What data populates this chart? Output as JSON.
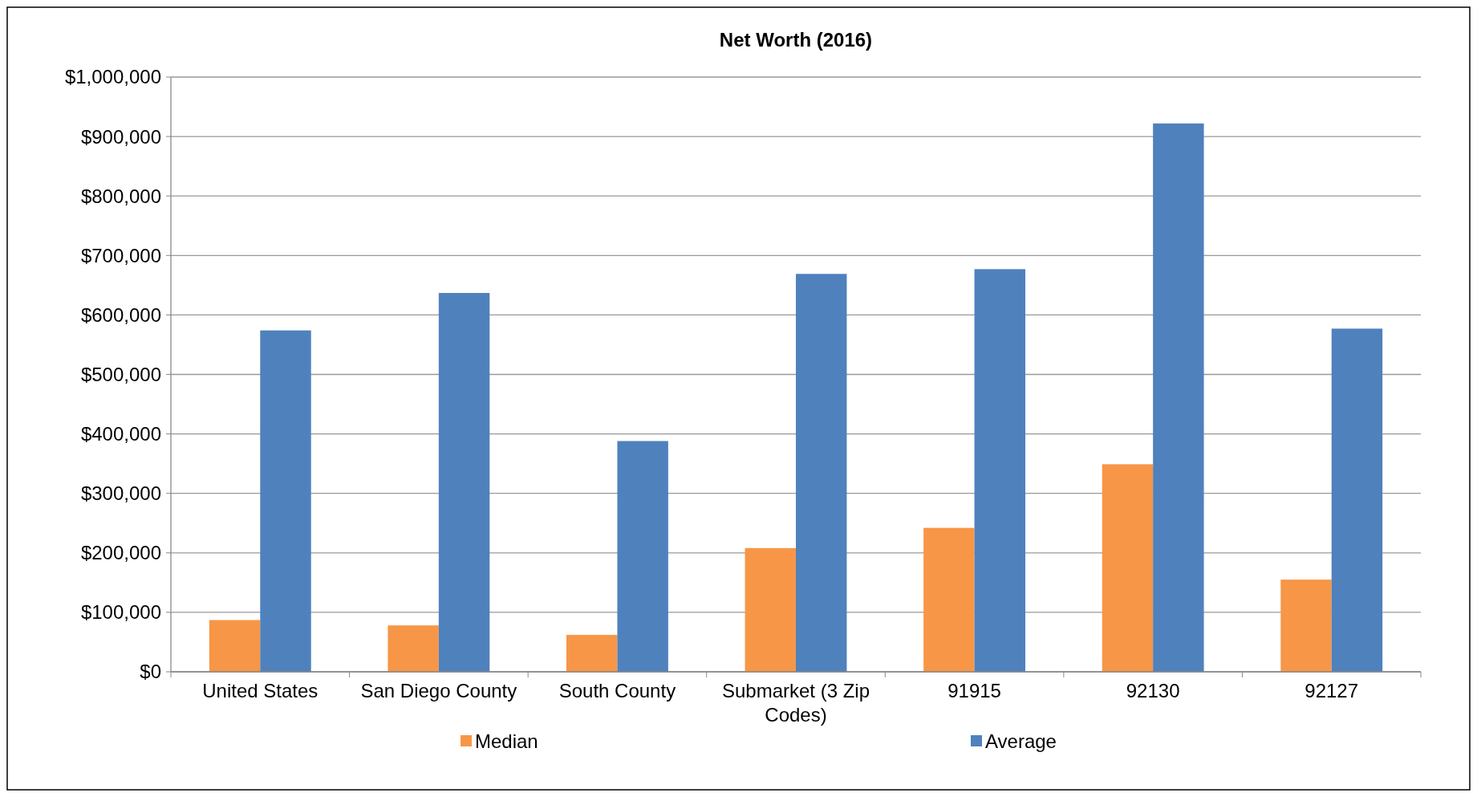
{
  "chart_data": {
    "type": "bar",
    "title": "Net Worth (2016)",
    "categories": [
      "United States",
      "San Diego County",
      "South County",
      "Submarket (3 Zip Codes)",
      "91915",
      "92130",
      "92127"
    ],
    "series": [
      {
        "name": "Median",
        "color": "#f79646",
        "values": [
          87000,
          78000,
          62000,
          208000,
          242000,
          349000,
          155000
        ]
      },
      {
        "name": "Average",
        "color": "#4f81bd",
        "values": [
          574000,
          637000,
          388000,
          669000,
          677000,
          922000,
          577000
        ]
      }
    ],
    "ylim": [
      0,
      1000000
    ],
    "yticks": [
      {
        "value": 0,
        "label": "$0"
      },
      {
        "value": 100000,
        "label": "$100,000"
      },
      {
        "value": 200000,
        "label": "$200,000"
      },
      {
        "value": 300000,
        "label": "$300,000"
      },
      {
        "value": 400000,
        "label": "$400,000"
      },
      {
        "value": 500000,
        "label": "$500,000"
      },
      {
        "value": 600000,
        "label": "$600,000"
      },
      {
        "value": 700000,
        "label": "$700,000"
      },
      {
        "value": 800000,
        "label": "$800,000"
      },
      {
        "value": 900000,
        "label": "$900,000"
      },
      {
        "value": 1000000,
        "label": "$1,000,000"
      }
    ],
    "grid": "y",
    "legend": "bottom"
  }
}
